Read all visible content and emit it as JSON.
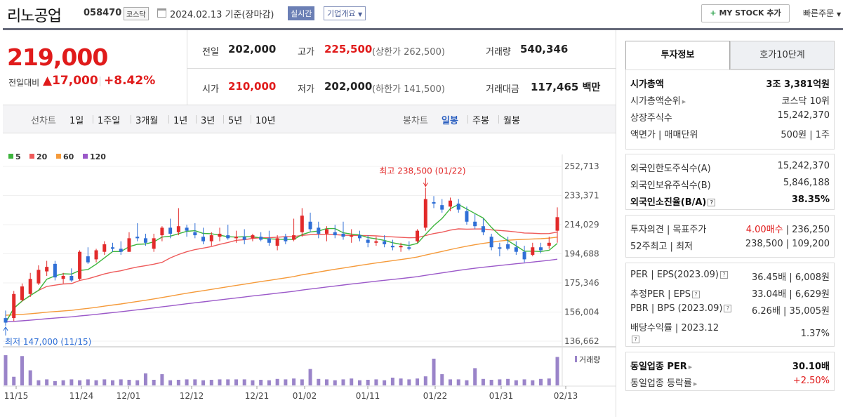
{
  "header": {
    "company": "리노공업",
    "code": "058470",
    "market": "코스닥",
    "date_text": "2024.02.13 기준(장마감)",
    "realtime": "실시간",
    "overview": "기업개요",
    "mystock": "MY STOCK 추가",
    "quick_order": "빠른주문"
  },
  "price": {
    "current": "219,000",
    "change_label": "전일대비",
    "change": "▲17,000",
    "change_pct": "+8.42%",
    "prev_label": "전일",
    "prev": "202,000",
    "high_label": "고가",
    "high": "225,500",
    "upper_limit": "(상한가 262,500)",
    "volume_label": "거래량",
    "volume": "540,346",
    "open_label": "시가",
    "open": "210,000",
    "low_label": "저가",
    "low": "202,000",
    "lower_limit": "(하한가 141,500)",
    "amount_label": "거래대금",
    "amount": "117,465",
    "amount_unit": "백만"
  },
  "period_bar": {
    "line_chart": "선차트",
    "ranges": [
      "1일",
      "1주일",
      "3개월",
      "1년",
      "3년",
      "5년",
      "10년"
    ],
    "candle_chart": "봉차트",
    "candle": [
      "일봉",
      "주봉",
      "월봉"
    ],
    "active_candle": "일봉"
  },
  "chart_data": {
    "type": "candlestick",
    "legend": [
      {
        "name": "5",
        "color": "#3db53d"
      },
      {
        "name": "20",
        "color": "#ee5a5a"
      },
      {
        "name": "60",
        "color": "#f59a3a"
      },
      {
        "name": "120",
        "color": "#9b59c9"
      }
    ],
    "y_ticks": [
      "252,713",
      "233,371",
      "214,029",
      "194,688",
      "175,346",
      "156,004",
      "136,662"
    ],
    "ylim": [
      136662,
      252713
    ],
    "x_ticks": [
      "11/15",
      "11/24",
      "12/01",
      "12/12",
      "12/21",
      "01/02",
      "01/11",
      "01/22",
      "01/31",
      "02/13"
    ],
    "max_annotation": "최고 238,500 (01/22)",
    "min_annotation": "최저 147,000 (11/15)",
    "volume_label": "거래량",
    "candles": [
      {
        "o": 152000,
        "h": 157000,
        "l": 147000,
        "c": 149000
      },
      {
        "o": 152000,
        "h": 170000,
        "l": 150000,
        "c": 168000
      },
      {
        "o": 164000,
        "h": 175000,
        "l": 163000,
        "c": 173000
      },
      {
        "o": 168000,
        "h": 182000,
        "l": 166000,
        "c": 178000
      },
      {
        "o": 175000,
        "h": 187000,
        "l": 174000,
        "c": 184000
      },
      {
        "o": 183000,
        "h": 190000,
        "l": 180000,
        "c": 186000
      },
      {
        "o": 188000,
        "h": 190000,
        "l": 177000,
        "c": 179000
      },
      {
        "o": 178000,
        "h": 182000,
        "l": 175000,
        "c": 180000
      },
      {
        "o": 180000,
        "h": 185000,
        "l": 176000,
        "c": 177000
      },
      {
        "o": 178000,
        "h": 197000,
        "l": 177000,
        "c": 196000
      },
      {
        "o": 193000,
        "h": 199000,
        "l": 188000,
        "c": 189000
      },
      {
        "o": 191000,
        "h": 198000,
        "l": 189000,
        "c": 197000
      },
      {
        "o": 196000,
        "h": 203000,
        "l": 194000,
        "c": 201000
      },
      {
        "o": 199000,
        "h": 202000,
        "l": 196000,
        "c": 198000
      },
      {
        "o": 198000,
        "h": 203000,
        "l": 194000,
        "c": 196000
      },
      {
        "o": 196000,
        "h": 209000,
        "l": 196000,
        "c": 205000
      },
      {
        "o": 206000,
        "h": 215000,
        "l": 203000,
        "c": 205000
      },
      {
        "o": 205000,
        "h": 208000,
        "l": 200000,
        "c": 202000
      },
      {
        "o": 198000,
        "h": 208000,
        "l": 196000,
        "c": 205000
      },
      {
        "o": 207000,
        "h": 213000,
        "l": 203000,
        "c": 212000
      },
      {
        "o": 212000,
        "h": 218000,
        "l": 205000,
        "c": 208000
      },
      {
        "o": 209000,
        "h": 225000,
        "l": 207000,
        "c": 213000
      },
      {
        "o": 212000,
        "h": 214000,
        "l": 206000,
        "c": 210000
      },
      {
        "o": 209000,
        "h": 215000,
        "l": 205000,
        "c": 207000
      },
      {
        "o": 206000,
        "h": 212000,
        "l": 201000,
        "c": 203000
      },
      {
        "o": 203000,
        "h": 209000,
        "l": 200000,
        "c": 207000
      },
      {
        "o": 206000,
        "h": 212000,
        "l": 203000,
        "c": 208000
      },
      {
        "o": 207000,
        "h": 214000,
        "l": 204000,
        "c": 205000
      },
      {
        "o": 205000,
        "h": 210000,
        "l": 202000,
        "c": 206000
      },
      {
        "o": 206000,
        "h": 211000,
        "l": 201000,
        "c": 204000
      },
      {
        "o": 205000,
        "h": 208000,
        "l": 203000,
        "c": 207000
      },
      {
        "o": 206000,
        "h": 209000,
        "l": 203000,
        "c": 204000
      },
      {
        "o": 205000,
        "h": 210000,
        "l": 200000,
        "c": 202000
      },
      {
        "o": 200000,
        "h": 207000,
        "l": 197000,
        "c": 205000
      },
      {
        "o": 206000,
        "h": 208000,
        "l": 201000,
        "c": 203000
      },
      {
        "o": 204000,
        "h": 218000,
        "l": 203000,
        "c": 207000
      },
      {
        "o": 209000,
        "h": 225000,
        "l": 206000,
        "c": 220000
      },
      {
        "o": 216000,
        "h": 222000,
        "l": 209000,
        "c": 211000
      },
      {
        "o": 212000,
        "h": 216000,
        "l": 205000,
        "c": 208000
      },
      {
        "o": 208000,
        "h": 213000,
        "l": 203000,
        "c": 211000
      },
      {
        "o": 209000,
        "h": 214000,
        "l": 205000,
        "c": 207000
      },
      {
        "o": 208000,
        "h": 216000,
        "l": 204000,
        "c": 206000
      },
      {
        "o": 206000,
        "h": 211000,
        "l": 202000,
        "c": 207000
      },
      {
        "o": 207000,
        "h": 210000,
        "l": 203000,
        "c": 205000
      },
      {
        "o": 204000,
        "h": 207000,
        "l": 199000,
        "c": 202000
      },
      {
        "o": 202000,
        "h": 206000,
        "l": 200000,
        "c": 203000
      },
      {
        "o": 203000,
        "h": 207000,
        "l": 199000,
        "c": 201000
      },
      {
        "o": 200000,
        "h": 204000,
        "l": 197000,
        "c": 199000
      },
      {
        "o": 199000,
        "h": 202000,
        "l": 196000,
        "c": 200000
      },
      {
        "o": 199000,
        "h": 203000,
        "l": 197000,
        "c": 198000
      },
      {
        "o": 203000,
        "h": 211000,
        "l": 202000,
        "c": 210000
      },
      {
        "o": 212000,
        "h": 238500,
        "l": 210000,
        "c": 231000
      },
      {
        "o": 229000,
        "h": 233000,
        "l": 225000,
        "c": 228000
      },
      {
        "o": 227000,
        "h": 231000,
        "l": 222000,
        "c": 224000
      },
      {
        "o": 226000,
        "h": 232000,
        "l": 223000,
        "c": 230000
      },
      {
        "o": 228000,
        "h": 231000,
        "l": 222000,
        "c": 224000
      },
      {
        "o": 223000,
        "h": 226000,
        "l": 214000,
        "c": 216000
      },
      {
        "o": 216000,
        "h": 221000,
        "l": 211000,
        "c": 213000
      },
      {
        "o": 213000,
        "h": 218000,
        "l": 207000,
        "c": 209000
      },
      {
        "o": 206000,
        "h": 208000,
        "l": 197000,
        "c": 199000
      },
      {
        "o": 199000,
        "h": 202000,
        "l": 193000,
        "c": 198000
      },
      {
        "o": 201000,
        "h": 206000,
        "l": 197000,
        "c": 198000
      },
      {
        "o": 199000,
        "h": 203000,
        "l": 194000,
        "c": 196000
      },
      {
        "o": 196000,
        "h": 200000,
        "l": 189000,
        "c": 191000
      },
      {
        "o": 194000,
        "h": 202000,
        "l": 193000,
        "c": 199000
      },
      {
        "o": 199000,
        "h": 202000,
        "l": 195000,
        "c": 197000
      },
      {
        "o": 200000,
        "h": 206000,
        "l": 198000,
        "c": 202000
      },
      {
        "o": 210000,
        "h": 225500,
        "l": 202000,
        "c": 219000
      }
    ],
    "volumes": [
      70,
      20,
      68,
      35,
      12,
      14,
      10,
      12,
      14,
      12,
      14,
      12,
      14,
      12,
      14,
      13,
      12,
      28,
      13,
      26,
      12,
      13,
      14,
      14,
      12,
      13,
      14,
      14,
      14,
      14,
      12,
      13,
      12,
      15,
      14,
      16,
      14,
      38,
      15,
      14,
      12,
      14,
      16,
      12,
      13,
      14,
      12,
      18,
      16,
      14,
      16,
      21,
      62,
      26,
      14,
      14,
      12,
      40,
      15,
      13,
      14,
      15,
      12,
      14,
      12,
      15,
      16,
      66
    ]
  },
  "right_panel": {
    "tab1": "투자정보",
    "tab2": "호가10단계",
    "sec1": [
      {
        "l": "시가총액",
        "r": "3조 3,381억원",
        "bold": true
      },
      {
        "l": "시가총액순위",
        "r": "코스닥 10위",
        "tri": true
      },
      {
        "l": "상장주식수",
        "r": "15,242,370"
      },
      {
        "l": "액면가 | 매매단위",
        "r": "500원 | 1주"
      }
    ],
    "sec2": [
      {
        "l": "외국인한도주식수(A)",
        "r": "15,242,370"
      },
      {
        "l": "외국인보유주식수(B)",
        "r": "5,846,188"
      },
      {
        "l": "외국인소진율(B/A)",
        "r": "38.35%",
        "bold": true,
        "hint": true
      }
    ],
    "sec3": [
      {
        "l": "투자의견 | 목표주가",
        "r_red": "4.00매수",
        "r": " | 236,250"
      },
      {
        "l": "52주최고 | 최저",
        "r": "238,500 | 109,200"
      }
    ],
    "sec4": [
      {
        "l": "PER | EPS(2023.09)",
        "r": "36.45배 | 6,008원",
        "hint": true
      },
      {
        "l": "추정PER | EPS",
        "r": "33.04배 | 6,629원",
        "hint": true
      },
      {
        "l": "PBR | BPS (2023.09)",
        "r": "6.26배 | 35,005원",
        "hint": true
      },
      {
        "l": "배당수익률 | 2023.12",
        "r": "1.37%",
        "hint2": true
      }
    ],
    "sec5": [
      {
        "l": "동일업종 PER",
        "r": "30.10배",
        "bold": true,
        "tri": true
      },
      {
        "l": "동일업종 등락률",
        "r_red": "+2.50%",
        "tri": true
      }
    ]
  }
}
